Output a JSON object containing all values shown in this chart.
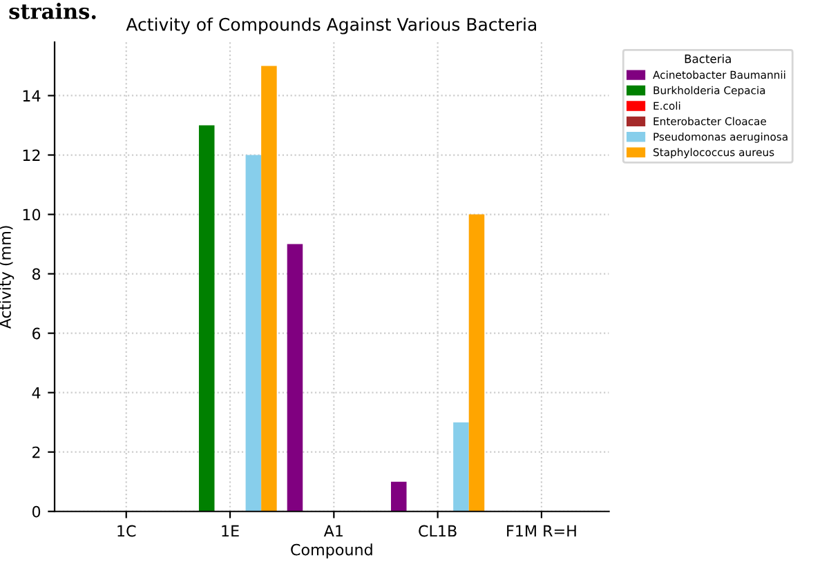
{
  "chart_data": {
    "type": "bar",
    "title": "Activity of Compounds Against Various Bacteria",
    "xlabel": "Compound",
    "ylabel": "Activity (mm)",
    "legend_title": "Bacteria",
    "annotations": [
      "strains."
    ],
    "categories": [
      "1C",
      "1E",
      "A1",
      "CL1B",
      "F1M R=H"
    ],
    "series": [
      {
        "name": "Acinetobacter Baumannii",
        "color": "#800080",
        "values": [
          null,
          null,
          9,
          1,
          null
        ]
      },
      {
        "name": "Burkholderia Cepacia",
        "color": "#008000",
        "values": [
          null,
          13,
          null,
          null,
          null
        ]
      },
      {
        "name": "E.coli",
        "color": "#ff0000",
        "values": [
          null,
          null,
          null,
          null,
          null
        ]
      },
      {
        "name": "Enterobacter Cloacae",
        "color": "#a52a2a",
        "values": [
          null,
          null,
          null,
          null,
          null
        ]
      },
      {
        "name": "Pseudomonas aeruginosa",
        "color": "#87ceeb",
        "values": [
          null,
          12,
          null,
          3,
          null
        ]
      },
      {
        "name": "Staphylococcus aureus",
        "color": "#ffa500",
        "values": [
          null,
          15,
          null,
          10,
          null
        ]
      }
    ],
    "ylim": [
      0,
      15.8
    ],
    "yticks": [
      0,
      2,
      4,
      6,
      8,
      10,
      12,
      14
    ],
    "grid": true,
    "legend": "right"
  }
}
